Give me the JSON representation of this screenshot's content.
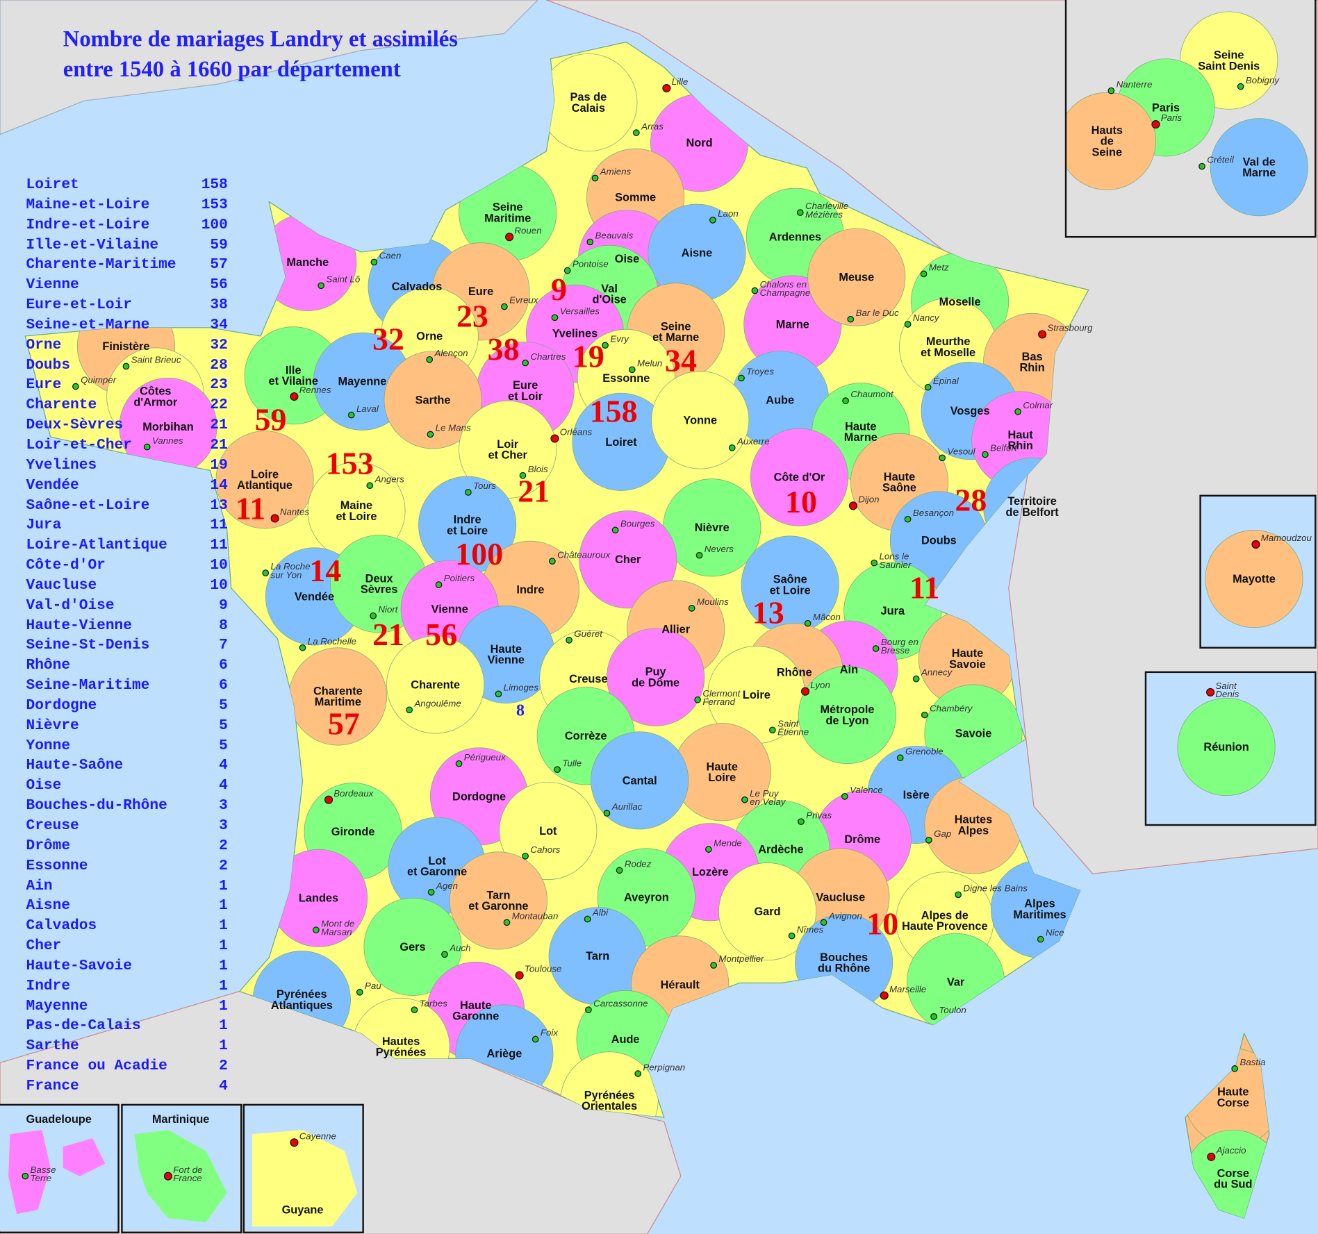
{
  "title": {
    "line1": "Nombre de mariages Landry et assimilés",
    "line2": "entre 1540 à 1660 par département"
  },
  "colors": {
    "title": "#2020ff",
    "list": "#1a1aff",
    "counts": "#ee0000",
    "sea": "#bfdfff",
    "foreign_land": "#e0e0e0"
  },
  "ranking": [
    {
      "name": "Loiret",
      "count": "158"
    },
    {
      "name": "Maine-et-Loire",
      "count": "153"
    },
    {
      "name": "Indre-et-Loire",
      "count": "100"
    },
    {
      "name": "Ille-et-Vilaine",
      "count": "59"
    },
    {
      "name": "Charente-Maritime",
      "count": "57"
    },
    {
      "name": "Vienne",
      "count": "56"
    },
    {
      "name": "Eure-et-Loir",
      "count": "38"
    },
    {
      "name": "Seine-et-Marne",
      "count": "34"
    },
    {
      "name": "Orne",
      "count": "32"
    },
    {
      "name": "Doubs",
      "count": "28"
    },
    {
      "name": "Eure",
      "count": "23"
    },
    {
      "name": "Charente",
      "count": "22"
    },
    {
      "name": "Deux-Sèvres",
      "count": "21"
    },
    {
      "name": "Loir-et-Cher",
      "count": "21"
    },
    {
      "name": "Yvelines",
      "count": "19"
    },
    {
      "name": "Vendée",
      "count": "14"
    },
    {
      "name": "Saône-et-Loire",
      "count": "13"
    },
    {
      "name": "Jura",
      "count": "11"
    },
    {
      "name": "Loire-Atlantique",
      "count": "11"
    },
    {
      "name": "Côte-d'Or",
      "count": "10"
    },
    {
      "name": "Vaucluse",
      "count": "10"
    },
    {
      "name": "Val-d'Oise",
      "count": "9"
    },
    {
      "name": "Haute-Vienne",
      "count": "8"
    },
    {
      "name": "Seine-St-Denis",
      "count": "7"
    },
    {
      "name": "Rhône",
      "count": "6"
    },
    {
      "name": "Seine-Maritime",
      "count": "6"
    },
    {
      "name": "Dordogne",
      "count": "5"
    },
    {
      "name": "Nièvre",
      "count": "5"
    },
    {
      "name": "Yonne",
      "count": "5"
    },
    {
      "name": "Haute-Saône",
      "count": "4"
    },
    {
      "name": "Oise",
      "count": "4"
    },
    {
      "name": "Bouches-du-Rhône",
      "count": "3"
    },
    {
      "name": "Creuse",
      "count": "3"
    },
    {
      "name": "Drôme",
      "count": "2"
    },
    {
      "name": "Essonne",
      "count": "2"
    },
    {
      "name": "Ain",
      "count": "1"
    },
    {
      "name": "Aisne",
      "count": "1"
    },
    {
      "name": "Calvados",
      "count": "1"
    },
    {
      "name": "Cher",
      "count": "1"
    },
    {
      "name": "Haute-Savoie",
      "count": "1"
    },
    {
      "name": "Indre",
      "count": "1"
    },
    {
      "name": "Mayenne",
      "count": "1"
    },
    {
      "name": "Pas-de-Calais",
      "count": "1"
    },
    {
      "name": "Sarthe",
      "count": "1"
    },
    {
      "name": "France ou Acadie",
      "count": "2"
    },
    {
      "name": "France",
      "count": "4"
    }
  ],
  "departments": [
    {
      "name": "Pas de\nCalais",
      "city": "Arras",
      "color": "#ffff80"
    },
    {
      "name": "Nord",
      "city": "Lille",
      "color": "#ff80ff",
      "capital": true
    },
    {
      "name": "Somme",
      "city": "Amiens",
      "color": "#ffc080"
    },
    {
      "name": "Seine\nMaritime",
      "city": "Rouen",
      "color": "#80ff80",
      "capital": true
    },
    {
      "name": "Oise",
      "city": "Beauvais",
      "color": "#ff80ff"
    },
    {
      "name": "Aisne",
      "city": "Laon",
      "color": "#80bfff"
    },
    {
      "name": "Ardennes",
      "city": "Charleville\nMézières",
      "color": "#80ff80"
    },
    {
      "name": "Manche",
      "city": "Saint Lô",
      "color": "#ff80ff"
    },
    {
      "name": "Calvados",
      "city": "Caen",
      "color": "#80bfff"
    },
    {
      "name": "Eure",
      "city": "Evreux",
      "color": "#ffc080"
    },
    {
      "name": "Val\nd'Oise",
      "city": "Pontoise",
      "color": "#80ff80"
    },
    {
      "name": "Marne",
      "city": "Chalons en\nChampagne",
      "color": "#ff80ff"
    },
    {
      "name": "Meuse",
      "city": "Bar le Duc",
      "color": "#ffc080"
    },
    {
      "name": "Moselle",
      "city": "Metz",
      "color": "#80ff80"
    },
    {
      "name": "Orne",
      "city": "Alençon",
      "color": "#ffff80"
    },
    {
      "name": "Yvelines",
      "city": "Versailles",
      "color": "#ff80ff"
    },
    {
      "name": "Seine\net Marne",
      "city": "Melun",
      "color": "#ffc080"
    },
    {
      "name": "Meurthe\net Moselle",
      "city": "Nancy",
      "color": "#ffff80"
    },
    {
      "name": "Bas\nRhin",
      "city": "Strasbourg",
      "color": "#ffc080",
      "capital": true
    },
    {
      "name": "Finistère",
      "city": "Quimper",
      "color": "#ffc080"
    },
    {
      "name": "Côtes\nd'Armor",
      "city": "Saint Brieuc",
      "color": "#ffff80"
    },
    {
      "name": "Ille\net Vilaine",
      "city": "Rennes",
      "color": "#80ff80",
      "capital": true
    },
    {
      "name": "Mayenne",
      "city": "Laval",
      "color": "#80bfff"
    },
    {
      "name": "Eure\net Loir",
      "city": "Chartres",
      "color": "#ff80ff"
    },
    {
      "name": "Essonne",
      "city": "Evry",
      "color": "#ffff80"
    },
    {
      "name": "Aube",
      "city": "Troyes",
      "color": "#80bfff"
    },
    {
      "name": "Haute\nMarne",
      "city": "Chaumont",
      "color": "#80ff80"
    },
    {
      "name": "Vosges",
      "city": "Épinal",
      "color": "#80bfff"
    },
    {
      "name": "Haut\nRhin",
      "city": "Colmar",
      "color": "#ff80ff"
    },
    {
      "name": "Morbihan",
      "city": "Vannes",
      "color": "#ff80ff"
    },
    {
      "name": "Sarthe",
      "city": "Le Mans",
      "color": "#ffc080"
    },
    {
      "name": "Loiret",
      "city": "Orléans",
      "color": "#80bfff",
      "capital": true
    },
    {
      "name": "Yonne",
      "city": "Auxerre",
      "color": "#ffff80"
    },
    {
      "name": "Loir\net Cher",
      "city": "Blois",
      "color": "#ffff80"
    },
    {
      "name": "Loire\nAtlantique",
      "city": "Nantes",
      "color": "#ffc080",
      "capital": true
    },
    {
      "name": "Maine\net Loire",
      "city": "Angers",
      "color": "#ffff80"
    },
    {
      "name": "Haute\nSaône",
      "city": "Vesoul",
      "color": "#ffc080"
    },
    {
      "name": "Territoire\nde Belfort",
      "city": "Belfort",
      "color": "#80bfff"
    },
    {
      "name": "Côte d'Or",
      "city": "Dijon",
      "color": "#ff80ff",
      "capital": true
    },
    {
      "name": "Indre\net Loire",
      "city": "Tours",
      "color": "#80bfff"
    },
    {
      "name": "Doubs",
      "city": "Besançon",
      "color": "#80bfff"
    },
    {
      "name": "Nièvre",
      "city": "Nevers",
      "color": "#80ff80"
    },
    {
      "name": "Cher",
      "city": "Bourges",
      "color": "#ff80ff"
    },
    {
      "name": "Indre",
      "city": "Châteauroux",
      "color": "#ffc080"
    },
    {
      "name": "Vendée",
      "city": "La Roche\nsur Yon",
      "color": "#80bfff"
    },
    {
      "name": "Deux\nSèvres",
      "city": "Niort",
      "color": "#80ff80"
    },
    {
      "name": "Vienne",
      "city": "Poitiers",
      "color": "#ff80ff"
    },
    {
      "name": "Saône\net Loire",
      "city": "Mâcon",
      "color": "#80bfff"
    },
    {
      "name": "Jura",
      "city": "Lons le\nSaunier",
      "color": "#80ff80"
    },
    {
      "name": "Allier",
      "city": "Moulins",
      "color": "#ffc080"
    },
    {
      "name": "Haute\nVienne",
      "city": "Limoges",
      "color": "#80bfff"
    },
    {
      "name": "Creuse",
      "city": "Guéret",
      "color": "#ffff80"
    },
    {
      "name": "Ain",
      "city": "Bourg en\nBresse",
      "color": "#ff80ff"
    },
    {
      "name": "Rhône",
      "city": "Lyon",
      "color": "#ffc080",
      "capital": true
    },
    {
      "name": "Haute\nSavoie",
      "city": "Annecy",
      "color": "#ffc080"
    },
    {
      "name": "Charente\nMaritime",
      "city": "La Rochelle",
      "color": "#ffc080"
    },
    {
      "name": "Charente",
      "city": "Angoulême",
      "color": "#ffff80"
    },
    {
      "name": "Puy\nde Dôme",
      "city": "Clermont\nFerrand",
      "color": "#ff80ff"
    },
    {
      "name": "Loire",
      "city": "Saint\nÉtienne",
      "color": "#ffff80"
    },
    {
      "name": "Métropole\nde Lyon",
      "city": "",
      "color": "#80ff80"
    },
    {
      "name": "Savoie",
      "city": "Chambéry",
      "color": "#80ff80"
    },
    {
      "name": "Corrèze",
      "city": "Tulle",
      "color": "#80ff80"
    },
    {
      "name": "Dordogne",
      "city": "Périgueux",
      "color": "#ff80ff"
    },
    {
      "name": "Haute\nLoire",
      "city": "Le Puy\nen Velay",
      "color": "#ffc080"
    },
    {
      "name": "Cantal",
      "city": "Aurillac",
      "color": "#80bfff"
    },
    {
      "name": "Isère",
      "city": "Grenoble",
      "color": "#80bfff"
    },
    {
      "name": "Gironde",
      "city": "Bordeaux",
      "color": "#80ff80",
      "capital": true
    },
    {
      "name": "Drôme",
      "city": "Valence",
      "color": "#ff80ff"
    },
    {
      "name": "Ardèche",
      "city": "Privas",
      "color": "#80ff80"
    },
    {
      "name": "Hautes\nAlpes",
      "city": "Gap",
      "color": "#ffc080"
    },
    {
      "name": "Lot",
      "city": "Cahors",
      "color": "#ffff80"
    },
    {
      "name": "Lozère",
      "city": "Mende",
      "color": "#ff80ff"
    },
    {
      "name": "Lot\net Garonne",
      "city": "Agen",
      "color": "#80bfff"
    },
    {
      "name": "Landes",
      "city": "Mont de\nMarsan",
      "color": "#ff80ff"
    },
    {
      "name": "Aveyron",
      "city": "Rodez",
      "color": "#80ff80"
    },
    {
      "name": "Tarn\net Garonne",
      "city": "Montauban",
      "color": "#ffc080"
    },
    {
      "name": "Vaucluse",
      "city": "Avignon",
      "color": "#ffc080"
    },
    {
      "name": "Alpes de\nHaute Provence",
      "city": "Digne les Bains",
      "color": "#ffff80"
    },
    {
      "name": "Alpes\nMaritimes",
      "city": "Nice",
      "color": "#80bfff"
    },
    {
      "name": "Gard",
      "city": "Nîmes",
      "color": "#ffff80"
    },
    {
      "name": "Gers",
      "city": "Auch",
      "color": "#80ff80"
    },
    {
      "name": "Tarn",
      "city": "Albi",
      "color": "#80bfff"
    },
    {
      "name": "Bouches\ndu Rhône",
      "city": "Marseille",
      "color": "#80bfff",
      "capital": true
    },
    {
      "name": "Var",
      "city": "Toulon",
      "color": "#80ff80"
    },
    {
      "name": "Hérault",
      "city": "Montpellier",
      "color": "#ffc080"
    },
    {
      "name": "Haute\nGaronne",
      "city": "Toulouse",
      "color": "#ff80ff",
      "capital": true
    },
    {
      "name": "Pyrénées\nAtlantiques",
      "city": "Pau",
      "color": "#80bfff"
    },
    {
      "name": "Hautes\nPyrénées",
      "city": "Tarbes",
      "color": "#ffff80"
    },
    {
      "name": "Aude",
      "city": "Carcassonne",
      "color": "#80ff80"
    },
    {
      "name": "Ariège",
      "city": "Foix",
      "color": "#80bfff"
    },
    {
      "name": "Pyrénées\nOrientales",
      "city": "Perpignan",
      "color": "#ffff80"
    },
    {
      "name": "Haute\nCorse",
      "city": "Bastia",
      "color": "#ffc080"
    },
    {
      "name": "Corse\ndu Sud",
      "city": "Ajaccio",
      "color": "#80ff80",
      "capital": true
    },
    {
      "name": "Seine\nSaint Denis",
      "city": "Bobigny",
      "color": "#ffff80"
    },
    {
      "name": "Paris",
      "city": "Paris",
      "color": "#80ff80",
      "capital": true
    },
    {
      "name": "Hauts\nde\nSeine",
      "city": "Nanterre",
      "color": "#ffc080"
    },
    {
      "name": "Val de\nMarne",
      "city": "Créteil",
      "color": "#80bfff"
    },
    {
      "name": "Mayotte",
      "city": "Mamoudzou",
      "color": "#ffc080",
      "capital": true
    },
    {
      "name": "Réunion",
      "city": "Saint\nDenis",
      "color": "#80ff80",
      "capital": true
    },
    {
      "name": "Guadeloupe",
      "city": "Basse\nTerre",
      "color": "#ff80ff"
    },
    {
      "name": "Martinique",
      "city": "Fort de\nFrance",
      "color": "#80ff80",
      "capital": true
    },
    {
      "name": "Guyane",
      "city": "Cayenne",
      "color": "#ffff80",
      "capital": true
    }
  ],
  "map_counts": [
    "9",
    "23",
    "32",
    "38",
    "19",
    "34",
    "158",
    "59",
    "153",
    "21",
    "11",
    "10",
    "28",
    "100",
    "14",
    "11",
    "13",
    "21",
    "56",
    "8",
    "57",
    "10"
  ]
}
